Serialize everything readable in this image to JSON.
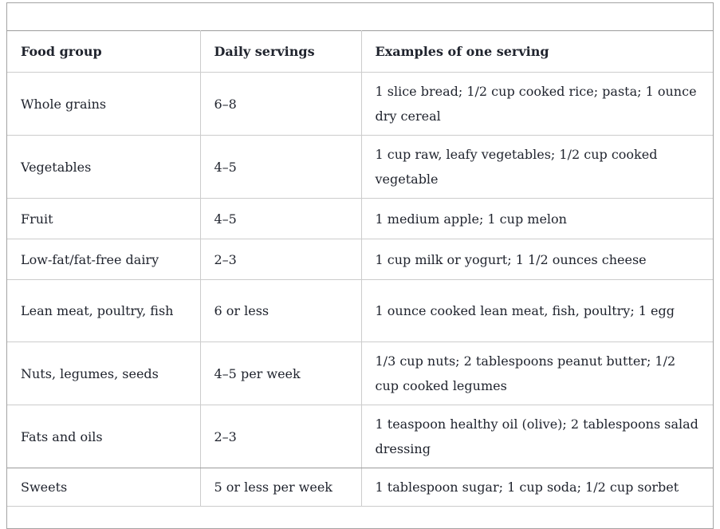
{
  "colors": {
    "outer_border": "#a3a3a3",
    "table_outer_border": "#9b9b9b",
    "cell_border": "#cccccc",
    "text": "#20242e",
    "background": "#ffffff"
  },
  "table": {
    "columns": [
      "Food group",
      "Daily servings",
      "Examples of one serving"
    ],
    "rows": [
      {
        "food_group": "Whole grains",
        "daily_servings": "6–8",
        "examples": "1 slice bread; 1/2 cup cooked rice; pasta; 1 ounce dry cereal"
      },
      {
        "food_group": "Vegetables",
        "daily_servings": "4–5",
        "examples": "1 cup raw, leafy vegetables; 1/2 cup cooked vegetable"
      },
      {
        "food_group": "Fruit",
        "daily_servings": "4–5",
        "examples": "1 medium apple; 1 cup melon"
      },
      {
        "food_group": "Low-fat/fat-free dairy",
        "daily_servings": "2–3",
        "examples": "1 cup milk or yogurt; 1 1/2 ounces cheese"
      },
      {
        "food_group": "Lean meat, poultry, fish",
        "daily_servings": "6 or less",
        "examples": "1 ounce cooked lean meat, fish, poultry; 1 egg"
      },
      {
        "food_group": "Nuts, legumes, seeds",
        "daily_servings": "4–5 per week",
        "examples": "1/3 cup nuts; 2 tablespoons peanut butter; 1/2 cup cooked legumes"
      },
      {
        "food_group": "Fats and oils",
        "daily_servings": "2–3",
        "examples": "1 teaspoon healthy oil (olive); 2 tablespoons salad dressing"
      },
      {
        "food_group": "Sweets",
        "daily_servings": "5 or less per week",
        "examples": "1 tablespoon sugar; 1 cup soda; 1/2 cup sorbet"
      }
    ]
  }
}
